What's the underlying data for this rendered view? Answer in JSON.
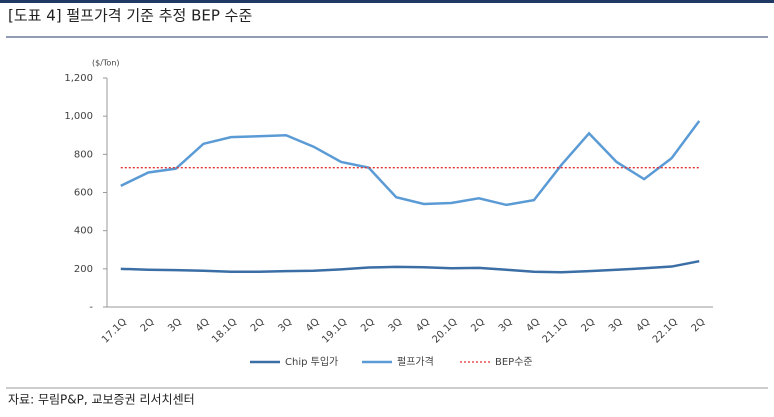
{
  "chart_data": {
    "type": "line",
    "title": "[도표 4] 펄프가격 기준 추정 BEP 수준",
    "y_axis_label": "($/Ton)",
    "source": "자료: 무림P&P, 교보증권 리서치센터",
    "categories": [
      "17.1Q",
      "2Q",
      "3Q",
      "4Q",
      "18.1Q",
      "2Q",
      "3Q",
      "4Q",
      "19.1Q",
      "2Q",
      "3Q",
      "4Q",
      "20.1Q",
      "2Q",
      "3Q",
      "4Q",
      "21.1Q",
      "2Q",
      "3Q",
      "4Q",
      "22.1Q",
      "2Q"
    ],
    "series": [
      {
        "name": "Chip 투입가",
        "color": "#3a6ea5",
        "values": [
          200,
          195,
          193,
          190,
          185,
          185,
          188,
          190,
          197,
          207,
          210,
          208,
          203,
          205,
          195,
          185,
          182,
          188,
          195,
          203,
          212,
          240
        ]
      },
      {
        "name": "펄프가격",
        "color": "#5b9bd5",
        "values": [
          635,
          705,
          725,
          855,
          890,
          895,
          900,
          840,
          760,
          730,
          575,
          540,
          545,
          570,
          535,
          560,
          745,
          910,
          760,
          670,
          780,
          975
        ]
      }
    ],
    "reference_line": {
      "name": "BEP수준",
      "value": 730,
      "color": "#e03030"
    },
    "ylim": [
      0,
      1200
    ],
    "yticks": [
      {
        "value": 0,
        "label": "-"
      },
      200,
      400,
      600,
      800,
      {
        "value": 1000,
        "label": "1,000"
      },
      {
        "value": 1200,
        "label": "1,200"
      }
    ]
  }
}
